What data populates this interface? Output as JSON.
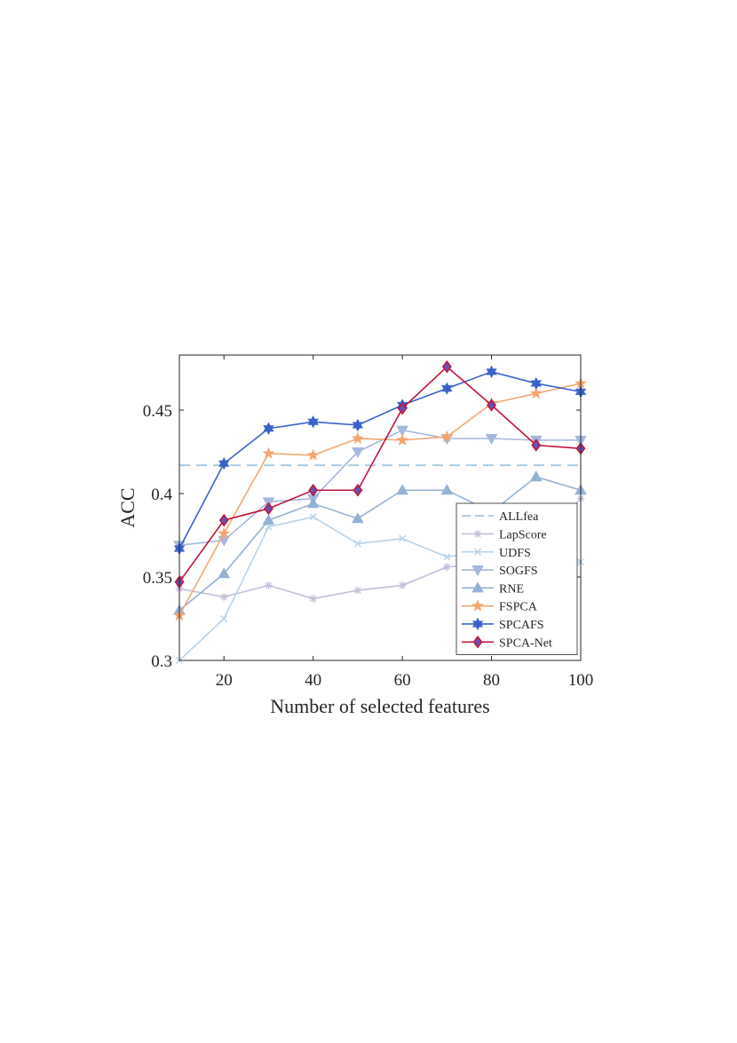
{
  "chart_data": {
    "type": "line",
    "xlabel": "Number of selected features",
    "ylabel": "ACC",
    "xlim": [
      10,
      100
    ],
    "ylim": [
      0.3,
      0.483
    ],
    "xticks": [
      20,
      40,
      60,
      80,
      100
    ],
    "xtick_labels": [
      "20",
      "40",
      "60",
      "80",
      "100"
    ],
    "yticks": [
      0.3,
      0.35,
      0.4,
      0.45
    ],
    "ytick_labels": [
      "0.3",
      "0.35",
      "0.4",
      "0.45"
    ],
    "grid": false,
    "legend_position": "bottom-right",
    "x": [
      10,
      20,
      30,
      40,
      50,
      60,
      70,
      80,
      90,
      100
    ],
    "series": [
      {
        "name": "ALLfea",
        "color": "#a9cbe4",
        "dash": "dashed",
        "marker": "none",
        "values": [
          0.417,
          0.417,
          0.417,
          0.417,
          0.417,
          0.417,
          0.417,
          0.417,
          0.417,
          0.417
        ]
      },
      {
        "name": "LapScore",
        "color": "#c6bfdb",
        "dash": "solid",
        "marker": "asterisk",
        "values": [
          0.343,
          0.338,
          0.345,
          0.337,
          0.342,
          0.345,
          0.356,
          0.358,
          0.368,
          0.397
        ]
      },
      {
        "name": "UDFS",
        "color": "#b7d3ea",
        "dash": "solid",
        "marker": "x",
        "values": [
          0.3,
          0.325,
          0.38,
          0.386,
          0.37,
          0.373,
          0.362,
          0.366,
          0.362,
          0.359
        ]
      },
      {
        "name": "SOGFS",
        "color": "#a4b8de",
        "dash": "solid",
        "marker": "triangle-down",
        "values": [
          0.369,
          0.372,
          0.395,
          0.397,
          0.425,
          0.438,
          0.433,
          0.433,
          0.432,
          0.432
        ]
      },
      {
        "name": "RNE",
        "color": "#94b2d6",
        "dash": "solid",
        "marker": "triangle-up",
        "values": [
          0.33,
          0.352,
          0.384,
          0.394,
          0.385,
          0.402,
          0.402,
          0.389,
          0.41,
          0.402
        ]
      },
      {
        "name": "FSPCA",
        "color": "#f4a671",
        "dash": "solid",
        "marker": "star",
        "values": [
          0.327,
          0.376,
          0.424,
          0.423,
          0.433,
          0.432,
          0.434,
          0.454,
          0.46,
          0.466
        ]
      },
      {
        "name": "SPCAFS",
        "color": "#3a63c9",
        "dash": "solid",
        "marker": "hexagram",
        "values": [
          0.367,
          0.418,
          0.439,
          0.443,
          0.441,
          0.453,
          0.463,
          0.473,
          0.466,
          0.461
        ]
      },
      {
        "name": "SPCA-Net",
        "color": "#c0143c",
        "dash": "solid",
        "marker": "diamond",
        "marker_fill": "#6a4fb0",
        "values": [
          0.347,
          0.384,
          0.391,
          0.402,
          0.402,
          0.451,
          0.476,
          0.453,
          0.429,
          0.427
        ]
      }
    ]
  }
}
